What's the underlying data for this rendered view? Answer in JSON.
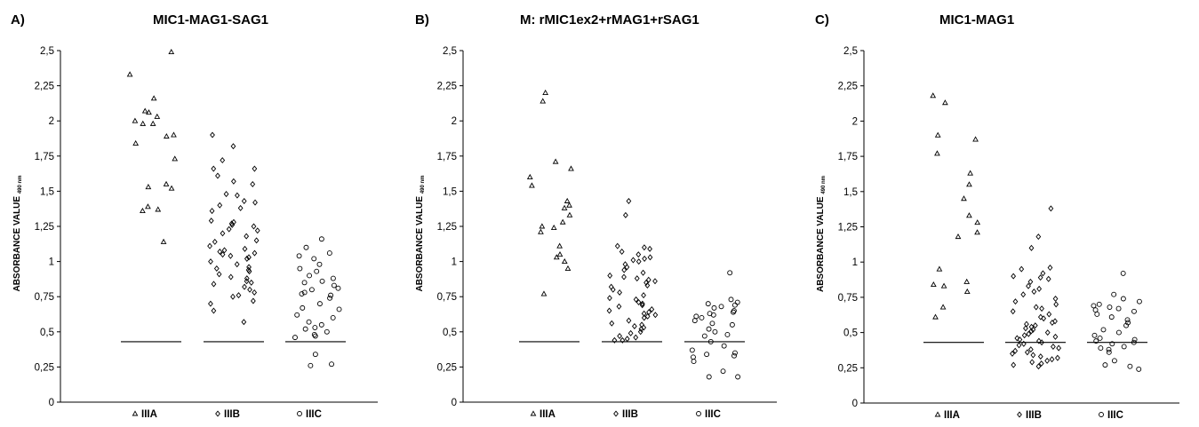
{
  "y_axis_label": "ABSORBANCE VALUE",
  "y_axis_label_sub": "490 nm",
  "chart_data": [
    {
      "panel": "A)",
      "type": "scatter",
      "title": "MIC1-MAG1-SAG1",
      "ylabel": "ABSORBANCE VALUE 490 nm",
      "ylim": [
        0,
        2.5
      ],
      "yticks": [
        "0",
        "0,25",
        "0,5",
        "0,75",
        "1",
        "1,25",
        "1,5",
        "1,75",
        "2",
        "2,25",
        "2,5"
      ],
      "cutoff": 0.43,
      "grid": false,
      "legend_position": "bottom",
      "groups": [
        {
          "name": "IIIA",
          "marker": "triangle",
          "values": [
            2.49,
            2.33,
            2.16,
            2.07,
            2.06,
            2.03,
            2.0,
            1.98,
            1.98,
            1.9,
            1.89,
            1.84,
            1.73,
            1.55,
            1.53,
            1.52,
            1.39,
            1.37,
            1.36,
            1.14
          ]
        },
        {
          "name": "IIIB",
          "marker": "diamond",
          "values": [
            1.9,
            1.82,
            1.72,
            1.66,
            1.66,
            1.61,
            1.57,
            1.55,
            1.48,
            1.47,
            1.43,
            1.42,
            1.4,
            1.38,
            1.36,
            1.29,
            1.28,
            1.27,
            1.26,
            1.25,
            1.23,
            1.22,
            1.2,
            1.18,
            1.15,
            1.14,
            1.11,
            1.09,
            1.08,
            1.07,
            1.06,
            1.05,
            1.04,
            1.03,
            1.02,
            1.0,
            0.98,
            0.96,
            0.95,
            0.94,
            0.93,
            0.91,
            0.89,
            0.88,
            0.86,
            0.85,
            0.84,
            0.82,
            0.8,
            0.78,
            0.76,
            0.75,
            0.72,
            0.7,
            0.65,
            0.57
          ]
        },
        {
          "name": "IIIC",
          "marker": "circle",
          "values": [
            1.16,
            1.1,
            1.06,
            1.04,
            1.02,
            0.98,
            0.95,
            0.93,
            0.9,
            0.88,
            0.86,
            0.85,
            0.83,
            0.81,
            0.8,
            0.78,
            0.77,
            0.76,
            0.74,
            0.7,
            0.67,
            0.66,
            0.62,
            0.6,
            0.57,
            0.55,
            0.53,
            0.52,
            0.5,
            0.48,
            0.47,
            0.46,
            0.34,
            0.27,
            0.26
          ]
        }
      ]
    },
    {
      "panel": "B)",
      "type": "scatter",
      "title": "M: rMIC1ex2+rMAG1+rSAG1",
      "ylabel": "ABSORBANCE VALUE 490 nm",
      "ylim": [
        0,
        2.5
      ],
      "yticks": [
        "0",
        "0,25",
        "0,5",
        "0,75",
        "1",
        "1,25",
        "1,5",
        "1,75",
        "2",
        "2,25",
        "2,5"
      ],
      "cutoff": 0.43,
      "grid": false,
      "legend_position": "bottom",
      "groups": [
        {
          "name": "IIIA",
          "marker": "triangle",
          "values": [
            2.2,
            2.14,
            1.71,
            1.66,
            1.6,
            1.54,
            1.43,
            1.4,
            1.38,
            1.33,
            1.28,
            1.25,
            1.24,
            1.21,
            1.11,
            1.05,
            1.03,
            1.0,
            0.95,
            0.77
          ]
        },
        {
          "name": "IIIB",
          "marker": "diamond",
          "values": [
            1.43,
            1.33,
            1.11,
            1.1,
            1.09,
            1.07,
            1.05,
            1.03,
            1.02,
            1.01,
            1.0,
            0.98,
            0.96,
            0.94,
            0.92,
            0.9,
            0.89,
            0.88,
            0.87,
            0.86,
            0.85,
            0.83,
            0.82,
            0.8,
            0.78,
            0.76,
            0.74,
            0.73,
            0.71,
            0.7,
            0.69,
            0.68,
            0.66,
            0.65,
            0.64,
            0.63,
            0.62,
            0.61,
            0.6,
            0.58,
            0.56,
            0.55,
            0.54,
            0.53,
            0.52,
            0.5,
            0.49,
            0.47,
            0.46,
            0.45,
            0.44,
            0.44
          ]
        },
        {
          "name": "IIIC",
          "marker": "circle",
          "values": [
            0.92,
            0.73,
            0.71,
            0.7,
            0.69,
            0.68,
            0.67,
            0.65,
            0.64,
            0.63,
            0.62,
            0.61,
            0.6,
            0.58,
            0.56,
            0.55,
            0.52,
            0.5,
            0.48,
            0.47,
            0.43,
            0.4,
            0.37,
            0.35,
            0.34,
            0.33,
            0.32,
            0.29,
            0.22,
            0.18,
            0.18
          ]
        }
      ]
    },
    {
      "panel": "C)",
      "type": "scatter",
      "title": "MIC1-MAG1",
      "ylabel": "ABSORBANCE VALUE 490 nm",
      "ylim": [
        0,
        2.5
      ],
      "yticks": [
        "0",
        "0,25",
        "0,5",
        "0,75",
        "1",
        "1,25",
        "1,5",
        "1,75",
        "2",
        "2,25",
        "2,5"
      ],
      "cutoff": 0.43,
      "grid": false,
      "legend_position": "bottom",
      "groups": [
        {
          "name": "IIIA",
          "marker": "triangle",
          "values": [
            2.18,
            2.13,
            1.9,
            1.87,
            1.77,
            1.63,
            1.55,
            1.45,
            1.33,
            1.28,
            1.21,
            1.18,
            0.95,
            0.86,
            0.84,
            0.83,
            0.79,
            0.68,
            0.61
          ]
        },
        {
          "name": "IIIB",
          "marker": "diamond",
          "values": [
            1.38,
            1.18,
            1.1,
            0.96,
            0.95,
            0.92,
            0.9,
            0.89,
            0.88,
            0.86,
            0.83,
            0.81,
            0.79,
            0.77,
            0.74,
            0.72,
            0.7,
            0.68,
            0.67,
            0.65,
            0.63,
            0.61,
            0.6,
            0.58,
            0.57,
            0.56,
            0.55,
            0.54,
            0.53,
            0.52,
            0.51,
            0.5,
            0.49,
            0.48,
            0.47,
            0.46,
            0.45,
            0.44,
            0.43,
            0.42,
            0.41,
            0.4,
            0.39,
            0.38,
            0.37,
            0.36,
            0.35,
            0.34,
            0.33,
            0.32,
            0.31,
            0.3,
            0.29,
            0.28,
            0.27,
            0.26
          ]
        },
        {
          "name": "IIIC",
          "marker": "circle",
          "values": [
            0.92,
            0.77,
            0.74,
            0.72,
            0.7,
            0.69,
            0.68,
            0.67,
            0.66,
            0.65,
            0.63,
            0.61,
            0.59,
            0.57,
            0.55,
            0.52,
            0.5,
            0.48,
            0.46,
            0.45,
            0.44,
            0.43,
            0.42,
            0.4,
            0.39,
            0.38,
            0.36,
            0.3,
            0.27,
            0.26,
            0.24
          ]
        }
      ]
    }
  ]
}
